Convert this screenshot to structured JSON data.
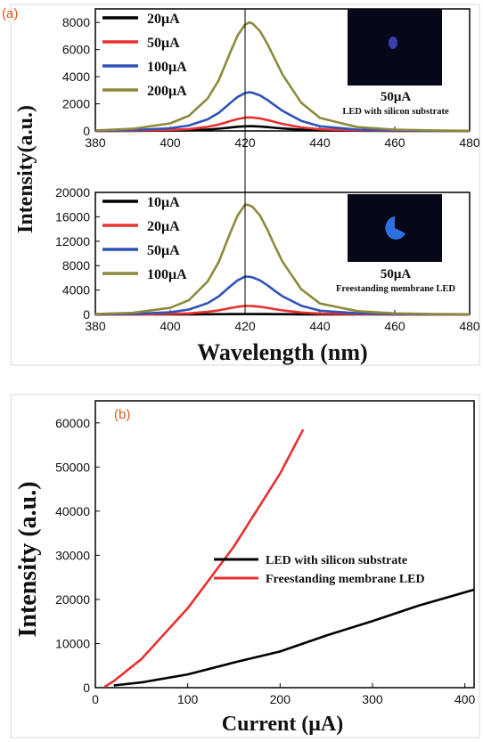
{
  "chart_data": [
    {
      "panel_label": "(a)",
      "type": "line",
      "xlim": [
        380,
        480
      ],
      "ylim": [
        0,
        9000
      ],
      "x_ticks": [
        "380",
        "400",
        "420",
        "440",
        "460",
        "480"
      ],
      "y_ticks": [
        "0",
        "2000",
        "4000",
        "6000",
        "8000"
      ],
      "inset": {
        "current": "50μA",
        "caption": "LED with silicon substrate"
      },
      "series": [
        {
          "name": "20μA",
          "color": "#000000",
          "peak": 350
        },
        {
          "name": "50μA",
          "color": "#e83030",
          "peak": 1000
        },
        {
          "name": "100μA",
          "color": "#2f52b8",
          "peak": 2850
        },
        {
          "name": "200μA",
          "color": "#8c8a3a",
          "peak": 8000
        }
      ],
      "curve_shape": {
        "center": 421,
        "x": [
          380,
          390,
          400,
          405,
          410,
          413,
          416,
          418,
          420,
          421,
          422,
          424,
          426,
          428,
          430,
          435,
          440,
          450,
          460,
          470,
          480
        ],
        "relative_y": [
          0.005,
          0.02,
          0.07,
          0.14,
          0.3,
          0.47,
          0.72,
          0.88,
          0.98,
          1.0,
          0.99,
          0.92,
          0.8,
          0.66,
          0.52,
          0.26,
          0.12,
          0.035,
          0.012,
          0.005,
          0.002
        ]
      }
    },
    {
      "type": "line",
      "xlim": [
        380,
        480
      ],
      "ylim": [
        0,
        20000
      ],
      "x_ticks": [
        "380",
        "400",
        "420",
        "440",
        "460",
        "480"
      ],
      "y_ticks": [
        "0",
        "4000",
        "8000",
        "12000",
        "16000",
        "20000"
      ],
      "xlabel": "Wavelength (nm)",
      "inset": {
        "current": "50μA",
        "caption": "Freestanding membrane LED"
      },
      "series": [
        {
          "name": "10μA",
          "color": "#000000",
          "peak": 80
        },
        {
          "name": "20μA",
          "color": "#e83030",
          "peak": 1400
        },
        {
          "name": "50μA",
          "color": "#2f52b8",
          "peak": 6200
        },
        {
          "name": "100μA",
          "color": "#8c8a3a",
          "peak": 18000
        }
      ],
      "curve_shape": {
        "center": 420,
        "x": [
          380,
          390,
          400,
          405,
          410,
          413,
          416,
          418,
          420,
          421,
          422,
          424,
          426,
          428,
          430,
          435,
          440,
          450,
          460,
          470,
          480
        ],
        "relative_y": [
          0.004,
          0.015,
          0.06,
          0.13,
          0.3,
          0.48,
          0.74,
          0.9,
          1.0,
          0.995,
          0.98,
          0.9,
          0.77,
          0.62,
          0.48,
          0.23,
          0.1,
          0.03,
          0.01,
          0.004,
          0.002
        ]
      }
    },
    {
      "panel_label": "(b)",
      "type": "line",
      "xlim": [
        0,
        410
      ],
      "ylim": [
        0,
        65000
      ],
      "x_ticks": [
        "0",
        "100",
        "200",
        "300",
        "400"
      ],
      "y_ticks": [
        "0",
        "10000",
        "20000",
        "30000",
        "40000",
        "50000",
        "60000"
      ],
      "xlabel": "Current (μA)",
      "series": [
        {
          "name": "LED with silicon substrate",
          "color": "#000000",
          "x": [
            20,
            50,
            100,
            150,
            200,
            250,
            300,
            350,
            410
          ],
          "y": [
            500,
            1200,
            3000,
            5700,
            8200,
            11800,
            15100,
            18600,
            22200
          ]
        },
        {
          "name": "Freestanding membrane LED",
          "color": "#e83030",
          "x": [
            10,
            20,
            50,
            100,
            150,
            200,
            225
          ],
          "y": [
            200,
            1500,
            6500,
            18000,
            32000,
            48500,
            58500
          ]
        }
      ]
    }
  ],
  "shared_ylabel_a": "Intensity(a.u.)",
  "ylabel_b": "Intensity (a.u.)"
}
